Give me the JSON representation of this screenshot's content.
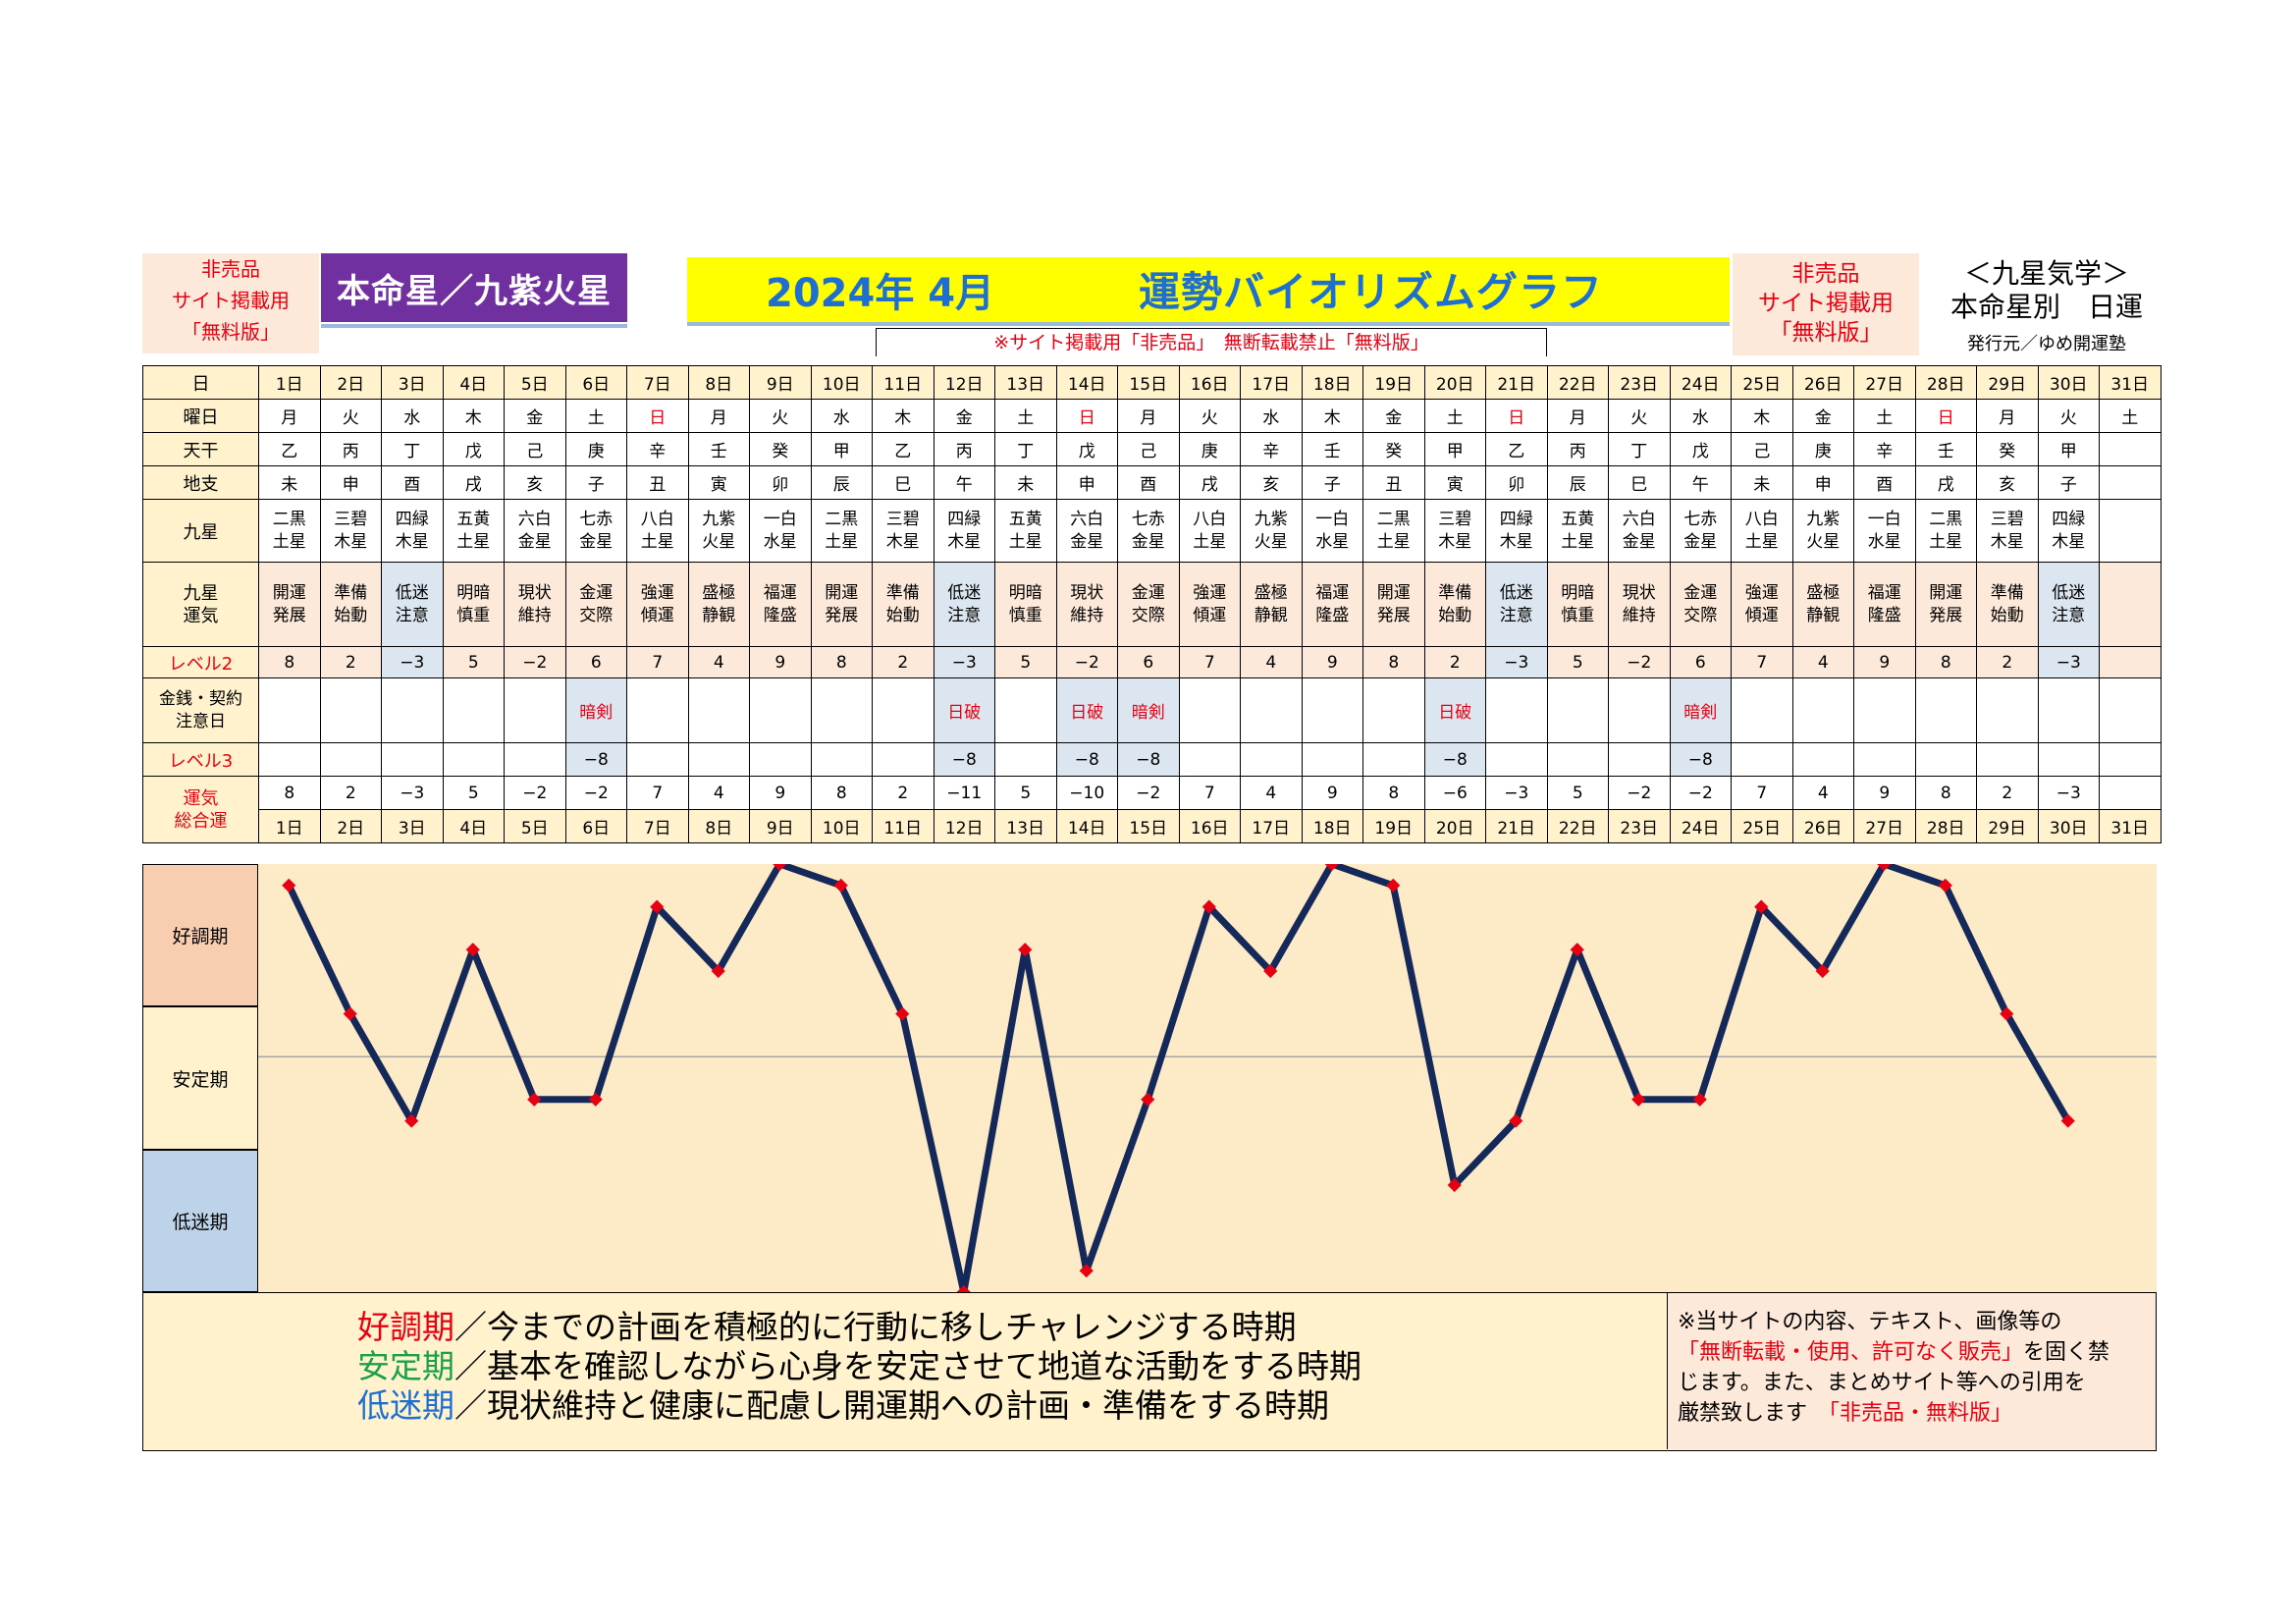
{
  "header": {
    "left_notice": [
      "非売品",
      "サイト掲載用",
      "「無料版」"
    ],
    "honmei": "本命星／九紫火星",
    "title_year": "2024年 4月",
    "title_main": "運勢バイオリズムグラフ",
    "notice": "※サイト掲載用「非売品」　無断転載禁止「無料版」",
    "right_notice": [
      "非売品",
      "サイト掲載用",
      "「無料版」"
    ],
    "kyusei_title": "＜九星気学＞",
    "kyusei_sub": "本命星別　日運",
    "publisher": "発行元／ゆめ開運塾"
  },
  "row_labels": {
    "day": "日",
    "weekday": "曜日",
    "tenkan": "天干",
    "chishi": "地支",
    "kyusei": "九星",
    "unki": [
      "九星",
      "運気"
    ],
    "level2": "レベル2",
    "caution": [
      "金銭・契約",
      "注意日"
    ],
    "level3": "レベル3",
    "total": [
      "運気",
      "総合運"
    ]
  },
  "days": [
    "1日",
    "2日",
    "3日",
    "4日",
    "5日",
    "6日",
    "7日",
    "8日",
    "9日",
    "10日",
    "11日",
    "12日",
    "13日",
    "14日",
    "15日",
    "16日",
    "17日",
    "18日",
    "19日",
    "20日",
    "21日",
    "22日",
    "23日",
    "24日",
    "25日",
    "26日",
    "27日",
    "28日",
    "29日",
    "30日",
    "31日"
  ],
  "weekdays": [
    "月",
    "火",
    "水",
    "木",
    "金",
    "土",
    "日",
    "月",
    "火",
    "水",
    "木",
    "金",
    "土",
    "日",
    "月",
    "火",
    "水",
    "木",
    "金",
    "土",
    "日",
    "月",
    "火",
    "水",
    "木",
    "金",
    "土",
    "日",
    "月",
    "火",
    "土"
  ],
  "tenkan": [
    "乙",
    "丙",
    "丁",
    "戊",
    "己",
    "庚",
    "辛",
    "壬",
    "癸",
    "甲",
    "乙",
    "丙",
    "丁",
    "戊",
    "己",
    "庚",
    "辛",
    "壬",
    "癸",
    "甲",
    "乙",
    "丙",
    "丁",
    "戊",
    "己",
    "庚",
    "辛",
    "壬",
    "癸",
    "甲",
    ""
  ],
  "chishi": [
    "未",
    "申",
    "酉",
    "戌",
    "亥",
    "子",
    "丑",
    "寅",
    "卯",
    "辰",
    "巳",
    "午",
    "未",
    "申",
    "酉",
    "戌",
    "亥",
    "子",
    "丑",
    "寅",
    "卯",
    "辰",
    "巳",
    "午",
    "未",
    "申",
    "酉",
    "戌",
    "亥",
    "子",
    ""
  ],
  "kyusei": [
    [
      "二黒",
      "土星"
    ],
    [
      "三碧",
      "木星"
    ],
    [
      "四緑",
      "木星"
    ],
    [
      "五黄",
      "土星"
    ],
    [
      "六白",
      "金星"
    ],
    [
      "七赤",
      "金星"
    ],
    [
      "八白",
      "土星"
    ],
    [
      "九紫",
      "火星"
    ],
    [
      "一白",
      "水星"
    ],
    [
      "二黒",
      "土星"
    ],
    [
      "三碧",
      "木星"
    ],
    [
      "四緑",
      "木星"
    ],
    [
      "五黄",
      "土星"
    ],
    [
      "六白",
      "金星"
    ],
    [
      "七赤",
      "金星"
    ],
    [
      "八白",
      "土星"
    ],
    [
      "九紫",
      "火星"
    ],
    [
      "一白",
      "水星"
    ],
    [
      "二黒",
      "土星"
    ],
    [
      "三碧",
      "木星"
    ],
    [
      "四緑",
      "木星"
    ],
    [
      "五黄",
      "土星"
    ],
    [
      "六白",
      "金星"
    ],
    [
      "七赤",
      "金星"
    ],
    [
      "八白",
      "土星"
    ],
    [
      "九紫",
      "火星"
    ],
    [
      "一白",
      "水星"
    ],
    [
      "二黒",
      "土星"
    ],
    [
      "三碧",
      "木星"
    ],
    [
      "四緑",
      "木星"
    ],
    [
      "",
      ""
    ]
  ],
  "unki": [
    [
      "開運",
      "発展"
    ],
    [
      "準備",
      "始動"
    ],
    [
      "低迷",
      "注意"
    ],
    [
      "明暗",
      "慎重"
    ],
    [
      "現状",
      "維持"
    ],
    [
      "金運",
      "交際"
    ],
    [
      "強運",
      "傾運"
    ],
    [
      "盛極",
      "静観"
    ],
    [
      "福運",
      "隆盛"
    ],
    [
      "開運",
      "発展"
    ],
    [
      "準備",
      "始動"
    ],
    [
      "低迷",
      "注意"
    ],
    [
      "明暗",
      "慎重"
    ],
    [
      "現状",
      "維持"
    ],
    [
      "金運",
      "交際"
    ],
    [
      "強運",
      "傾運"
    ],
    [
      "盛極",
      "静観"
    ],
    [
      "福運",
      "隆盛"
    ],
    [
      "開運",
      "発展"
    ],
    [
      "準備",
      "始動"
    ],
    [
      "低迷",
      "注意"
    ],
    [
      "明暗",
      "慎重"
    ],
    [
      "現状",
      "維持"
    ],
    [
      "金運",
      "交際"
    ],
    [
      "強運",
      "傾運"
    ],
    [
      "盛極",
      "静観"
    ],
    [
      "福運",
      "隆盛"
    ],
    [
      "開運",
      "発展"
    ],
    [
      "準備",
      "始動"
    ],
    [
      "低迷",
      "注意"
    ],
    [
      "",
      ""
    ]
  ],
  "level2": [
    "8",
    "2",
    "−3",
    "5",
    "−2",
    "6",
    "7",
    "4",
    "9",
    "8",
    "2",
    "−3",
    "5",
    "−2",
    "6",
    "7",
    "4",
    "9",
    "8",
    "2",
    "−3",
    "5",
    "−2",
    "6",
    "7",
    "4",
    "9",
    "8",
    "2",
    "−3",
    ""
  ],
  "caution": [
    "",
    "",
    "",
    "",
    "",
    "暗剣",
    "",
    "",
    "",
    "",
    "",
    "日破",
    "",
    "日破",
    "暗剣",
    "",
    "",
    "",
    "",
    "日破",
    "",
    "",
    "",
    "暗剣",
    "",
    "",
    "",
    "",
    "",
    "",
    ""
  ],
  "level3": [
    "",
    "",
    "",
    "",
    "",
    "−8",
    "",
    "",
    "",
    "",
    "",
    "−8",
    "",
    "−8",
    "−8",
    "",
    "",
    "",
    "",
    "−8",
    "",
    "",
    "",
    "−8",
    "",
    "",
    "",
    "",
    "",
    "",
    ""
  ],
  "total": [
    "8",
    "2",
    "−3",
    "5",
    "−2",
    "−2",
    "7",
    "4",
    "9",
    "8",
    "2",
    "−11",
    "5",
    "−10",
    "−2",
    "7",
    "4",
    "9",
    "8",
    "−6",
    "−3",
    "5",
    "−2",
    "−2",
    "7",
    "4",
    "9",
    "8",
    "2",
    "−3",
    ""
  ],
  "phases": {
    "good": "好調期",
    "stable": "安定期",
    "low": "低迷期"
  },
  "legend": {
    "good_term": "好調期",
    "good_text": "／今までの計画を積極的に行動に移しチャレンジする時期",
    "stable_term": "安定期",
    "stable_text": "／基本を確認しながら心身を安定させて地道な活動をする時期",
    "low_term": "低迷期",
    "low_text": "／現状維持と健康に配慮し開運期への計画・準備をする時期"
  },
  "copyright": {
    "line1": "※当サイトの内容、テキスト、画像等の",
    "line2_red": "「無断転載・使用、許可なく販売」",
    "line2_rest": "を固く禁",
    "line3": "じます。また、まとめサイト等への引用を",
    "line4": "厳禁致します",
    "line4_red": "「非売品・無料版」"
  },
  "colors": {
    "line": "#14285a",
    "marker": "#e60012",
    "chart_bg": "#fdebc8",
    "good_bg": "#f9cdb0",
    "stable_bg": "#fff2cc",
    "low_bg": "#bcd3ea"
  },
  "chart_data": {
    "type": "line",
    "x": [
      "1日",
      "2日",
      "3日",
      "4日",
      "5日",
      "6日",
      "7日",
      "8日",
      "9日",
      "10日",
      "11日",
      "12日",
      "13日",
      "14日",
      "15日",
      "16日",
      "17日",
      "18日",
      "19日",
      "20日",
      "21日",
      "22日",
      "23日",
      "24日",
      "25日",
      "26日",
      "27日",
      "28日",
      "29日",
      "30日"
    ],
    "values": [
      8,
      2,
      -3,
      5,
      -2,
      -2,
      7,
      4,
      9,
      8,
      2,
      -11,
      5,
      -10,
      -2,
      7,
      4,
      9,
      8,
      -6,
      -3,
      5,
      -2,
      -2,
      7,
      4,
      9,
      8,
      2,
      -3
    ],
    "ylim": [
      -11,
      9
    ]
  }
}
